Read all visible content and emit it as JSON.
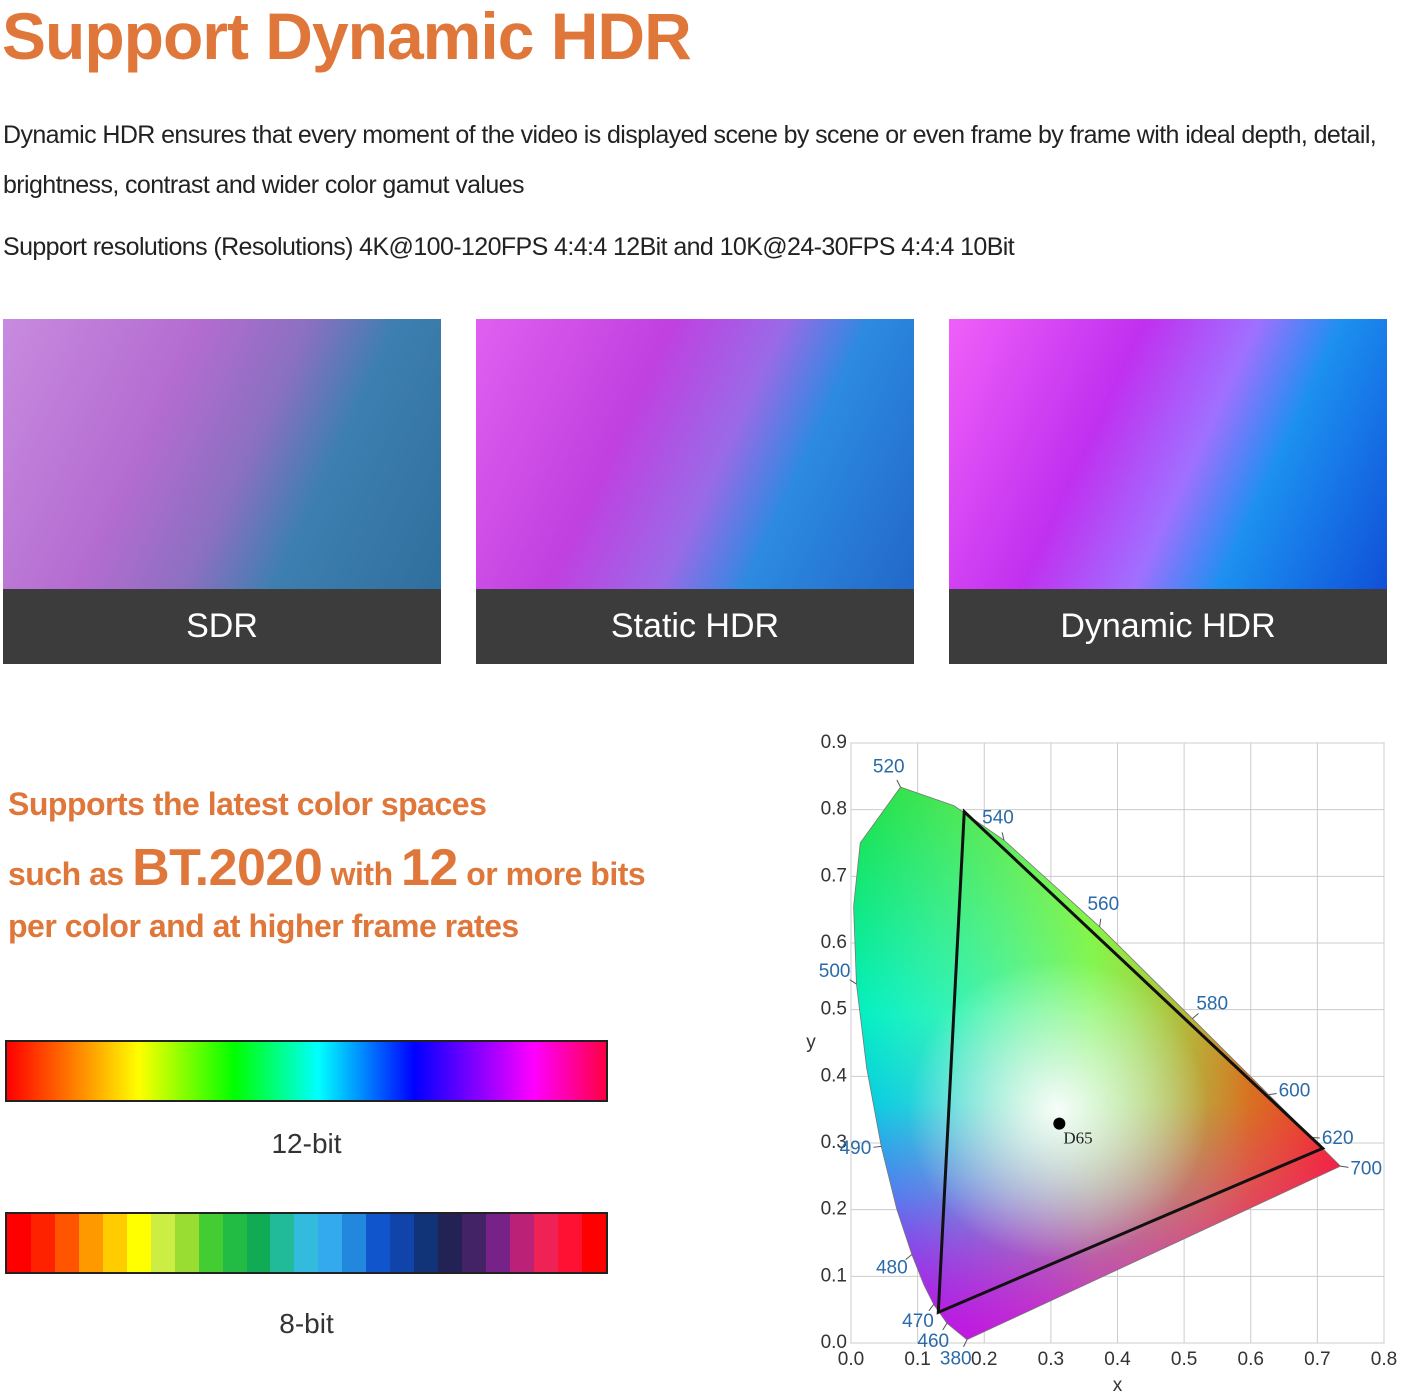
{
  "header": {
    "title": "Support Dynamic HDR",
    "paragraphs": [
      "Dynamic HDR ensures that every moment of the video is displayed scene by scene or even frame by frame with ideal depth, detail, brightness, contrast and wider color gamut values",
      "Support resolutions (Resolutions) 4K@100-120FPS 4:4:4 12Bit and 10K@24-30FPS 4:4:4 10Bit"
    ]
  },
  "comparison": {
    "captions": [
      "SDR",
      "Static HDR",
      "Dynamic HDR"
    ]
  },
  "color_section": {
    "heading": [
      "Supports the latest color spaces",
      "such as",
      "BT.2020",
      "with",
      "12",
      "or more bits",
      "per color and at higher frame rates"
    ],
    "bars": [
      "12-bit",
      "8-bit"
    ]
  },
  "chart_data": {
    "type": "chromaticity",
    "x_label": "x",
    "y_label": "y",
    "xlim": [
      0,
      0.8
    ],
    "ylim": [
      0,
      0.9
    ],
    "xticks": [
      {
        "value": 0,
        "label": "0.0"
      },
      0.1,
      0.2,
      0.3,
      0.4,
      0.5,
      0.6,
      0.7,
      0.8
    ],
    "yticks": [
      {
        "value": 0,
        "label": "0.0"
      },
      0.1,
      0.2,
      0.3,
      0.4,
      0.5,
      0.6,
      0.7,
      0.8,
      0.9
    ],
    "grid": true,
    "locus": {
      "labels": [
        380,
        460,
        470,
        null,
        480,
        null,
        490,
        null,
        500,
        null,
        null,
        520,
        null,
        540,
        560,
        580,
        600,
        620,
        700
      ],
      "x": [
        0.1741,
        0.144,
        0.1241,
        0.1096,
        0.0913,
        0.0687,
        0.0454,
        0.0235,
        0.0082,
        0.0039,
        0.0139,
        0.0743,
        0.1547,
        0.2296,
        0.3731,
        0.5125,
        0.627,
        0.6915,
        0.7347
      ],
      "y": [
        0.005,
        0.0297,
        0.0578,
        0.0868,
        0.1327,
        0.2007,
        0.295,
        0.4127,
        0.5384,
        0.6548,
        0.7502,
        0.8338,
        0.8059,
        0.7543,
        0.6245,
        0.4866,
        0.3725,
        0.3083,
        0.2653
      ]
    },
    "gamut": {
      "x": [
        0.708,
        0.17,
        0.131
      ],
      "y": [
        0.292,
        0.797,
        0.046
      ],
      "color": "#111111"
    },
    "white_point": {
      "label": "D65",
      "x": 0.3127,
      "y": 0.329
    }
  }
}
